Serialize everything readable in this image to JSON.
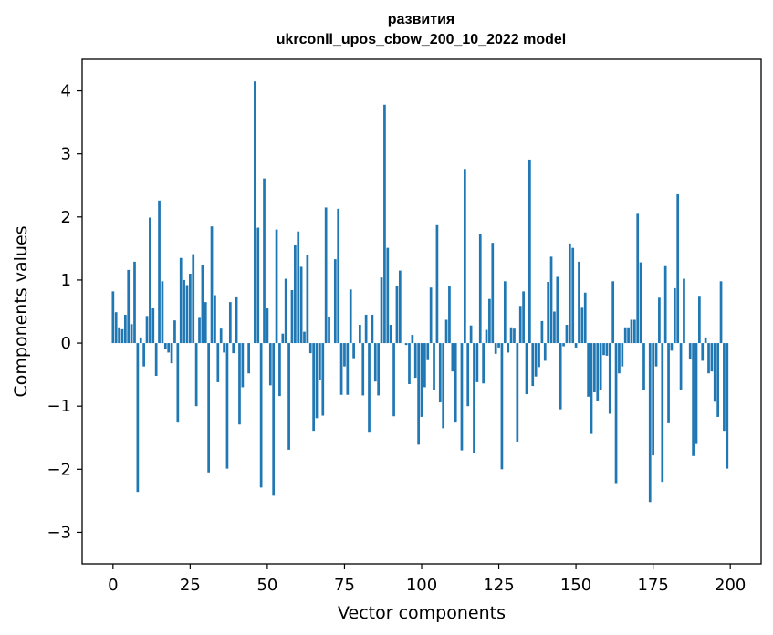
{
  "chart_data": {
    "type": "bar",
    "title_line1": "развития",
    "title_line2": "ukrconll_upos_cbow_200_10_2022 model",
    "xlabel": "Vector components",
    "ylabel": "Components values",
    "xlim": [
      -10,
      210
    ],
    "ylim": [
      -3.5,
      4.5
    ],
    "xticks": [
      0,
      25,
      50,
      75,
      100,
      125,
      150,
      175,
      200
    ],
    "yticks": [
      -3,
      -2,
      -1,
      0,
      1,
      2,
      3,
      4
    ],
    "bar_color": "#1f77b4",
    "grid": false,
    "values": [
      0.82,
      0.49,
      0.25,
      0.22,
      0.45,
      1.16,
      0.3,
      1.29,
      -2.36,
      0.09,
      -0.37,
      0.43,
      1.99,
      0.55,
      -0.52,
      2.26,
      0.98,
      -0.1,
      -0.15,
      -0.32,
      0.36,
      -1.26,
      1.35,
      1.0,
      0.92,
      1.1,
      1.41,
      -1.0,
      0.4,
      1.24,
      0.65,
      -2.05,
      1.85,
      0.76,
      -0.62,
      0.23,
      -0.15,
      -1.99,
      0.65,
      -0.16,
      0.74,
      -1.29,
      -0.7,
      0.0,
      -0.48,
      0.0,
      4.15,
      1.83,
      -2.29,
      2.61,
      0.55,
      -0.67,
      -2.42,
      1.8,
      -0.84,
      0.15,
      1.02,
      -1.69,
      0.84,
      1.55,
      1.77,
      1.21,
      0.18,
      1.4,
      -0.16,
      -1.39,
      -1.19,
      -0.59,
      -1.15,
      2.15,
      0.41,
      0.0,
      1.33,
      2.13,
      -0.82,
      -0.37,
      -0.82,
      0.85,
      -0.24,
      0.0,
      0.29,
      -0.83,
      0.45,
      -1.42,
      0.45,
      -0.61,
      -0.83,
      1.04,
      3.78,
      1.51,
      0.29,
      -1.16,
      0.9,
      1.15,
      0.0,
      -0.03,
      -0.65,
      0.13,
      -0.55,
      -1.61,
      -1.17,
      -0.7,
      -0.27,
      0.88,
      -0.75,
      1.87,
      -0.94,
      -1.35,
      0.37,
      0.91,
      -0.45,
      -1.26,
      0.0,
      -1.7,
      2.76,
      -1.0,
      0.28,
      -1.75,
      -0.62,
      1.73,
      -0.64,
      0.21,
      0.7,
      1.59,
      -0.17,
      -0.07,
      -2.0,
      0.98,
      -0.15,
      0.25,
      0.23,
      -1.56,
      0.59,
      0.82,
      -0.81,
      2.91,
      -0.68,
      -0.53,
      -0.38,
      0.35,
      -0.28,
      0.97,
      1.37,
      0.5,
      1.05,
      -1.05,
      -0.05,
      0.29,
      1.58,
      1.51,
      -0.07,
      1.29,
      0.56,
      0.8,
      -0.85,
      -1.44,
      -0.78,
      -0.91,
      -0.75,
      -0.19,
      -0.2,
      -1.12,
      0.98,
      -2.22,
      -0.48,
      -0.37,
      0.25,
      0.25,
      0.37,
      0.37,
      2.05,
      1.28,
      -0.75,
      0.0,
      -2.52,
      -1.78,
      -0.37,
      0.72,
      -2.2,
      1.22,
      -1.27,
      -0.12,
      0.87,
      2.36,
      -0.74,
      1.02,
      0.0,
      -0.25,
      -1.79,
      -1.6,
      0.75,
      -0.28,
      0.09,
      -0.48,
      -0.45,
      -0.93,
      -1.17,
      0.98,
      -1.39,
      -1.99
    ]
  }
}
